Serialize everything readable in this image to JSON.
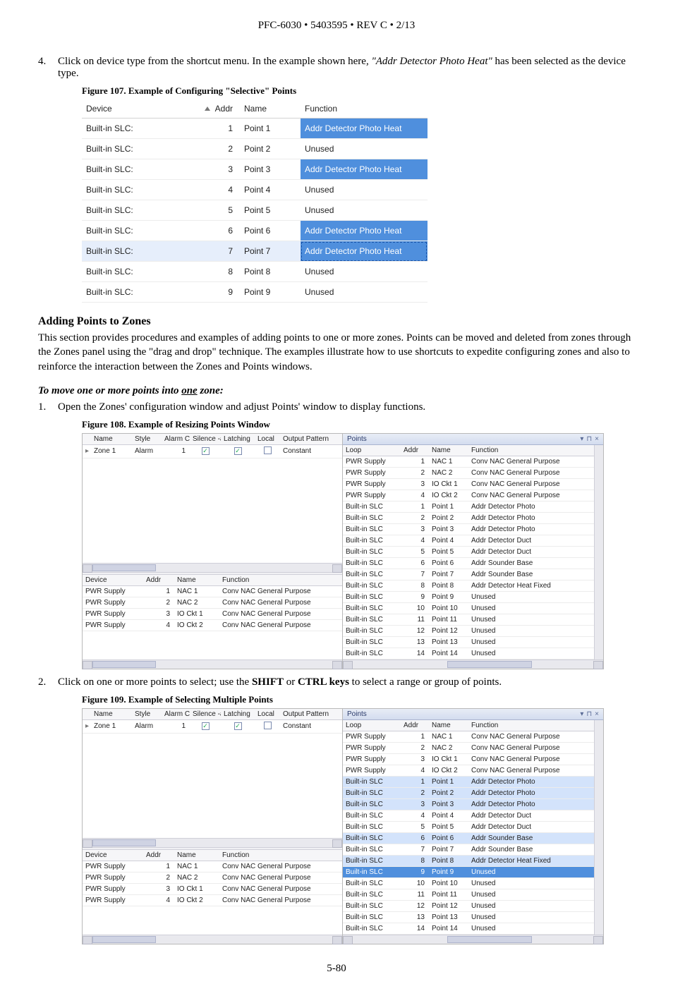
{
  "header": "PFC-6030 • 5403595 • REV C • 2/13",
  "page_number": "5-80",
  "step4": {
    "num": "4.",
    "text_a": "Click on device type from the shortcut menu. In the example shown here, ",
    "text_b": "\"Addr Detector Photo Heat\"",
    "text_c": " has been selected as the device type."
  },
  "fig107": {
    "caption": "Figure 107. Example of Configuring \"Selective\" Points",
    "columns": {
      "device": "Device",
      "addr": "Addr",
      "name": "Name",
      "function": "Function"
    },
    "rows": [
      {
        "device": "Built-in SLC:",
        "addr": "1",
        "name": "Point 1",
        "function": "Addr Detector Photo Heat",
        "sel": true
      },
      {
        "device": "Built-in SLC:",
        "addr": "2",
        "name": "Point 2",
        "function": "Unused",
        "sel": false
      },
      {
        "device": "Built-in SLC:",
        "addr": "3",
        "name": "Point 3",
        "function": "Addr Detector Photo Heat",
        "sel": true
      },
      {
        "device": "Built-in SLC:",
        "addr": "4",
        "name": "Point 4",
        "function": "Unused",
        "sel": false
      },
      {
        "device": "Built-in SLC:",
        "addr": "5",
        "name": "Point 5",
        "function": "Unused",
        "sel": false
      },
      {
        "device": "Built-in SLC:",
        "addr": "6",
        "name": "Point 6",
        "function": "Addr Detector Photo Heat",
        "sel": true
      },
      {
        "device": "Built-in SLC:",
        "addr": "7",
        "name": "Point 7",
        "function": "Addr Detector Photo Heat",
        "sel": true,
        "rowsel": true
      },
      {
        "device": "Built-in SLC:",
        "addr": "8",
        "name": "Point 8",
        "function": "Unused",
        "sel": false
      },
      {
        "device": "Built-in SLC:",
        "addr": "9",
        "name": "Point 9",
        "function": "Unused",
        "sel": false
      }
    ]
  },
  "section_adding": {
    "title": "Adding Points to Zones",
    "para": "This section provides procedures and examples of adding points to one or more zones. Points can be moved and deleted from zones through the Zones panel using the \"drag and drop\" technique. The examples illustrate how to use shortcuts to expedite configuring zones and also to reinforce the interaction between the Zones and Points windows."
  },
  "sub_move": {
    "title_a": "To move one or more points into ",
    "title_u": "one",
    "title_b": " zone:"
  },
  "step1": {
    "num": "1.",
    "text": "Open the Zones' configuration window and adjust Points' window to display functions."
  },
  "fig108_caption": "Figure 108. Example of Resizing Points Window",
  "step2": {
    "num": "2.",
    "text_a": "Click on one or more points to select; use the ",
    "text_b": "SHIFT",
    "text_c": " or ",
    "text_d": "CTRL keys",
    "text_e": " to select a range or group of points."
  },
  "fig109_caption": "Figure 109. Example of Selecting Multiple Points",
  "zones_panel": {
    "cols": [
      "Name",
      "Style",
      "Alarm Count",
      "Silence -able",
      "Latching",
      "Local",
      "Output Pattern"
    ],
    "row": {
      "name": "Zone 1",
      "style": "Alarm",
      "alarm": "1",
      "silence": true,
      "latch": true,
      "local": false,
      "pattern": "Constant"
    }
  },
  "lower_left": {
    "cols": [
      "Device",
      "Addr",
      "Name",
      "Function"
    ],
    "rows": [
      {
        "d": "PWR Supply",
        "a": "1",
        "n": "NAC 1",
        "f": "Conv NAC General Purpose"
      },
      {
        "d": "PWR Supply",
        "a": "2",
        "n": "NAC 2",
        "f": "Conv NAC General Purpose"
      },
      {
        "d": "PWR Supply",
        "a": "3",
        "n": "IO Ckt 1",
        "f": "Conv NAC General Purpose"
      },
      {
        "d": "PWR Supply",
        "a": "4",
        "n": "IO Ckt 2",
        "f": "Conv NAC General Purpose"
      }
    ]
  },
  "points_panel": {
    "title": "Points",
    "cols": [
      "Loop",
      "Addr",
      "Name",
      "Function"
    ],
    "rows": [
      {
        "l": "PWR Supply",
        "a": "1",
        "n": "NAC 1",
        "f": "Conv NAC General Purpose"
      },
      {
        "l": "PWR Supply",
        "a": "2",
        "n": "NAC 2",
        "f": "Conv NAC General Purpose"
      },
      {
        "l": "PWR Supply",
        "a": "3",
        "n": "IO Ckt 1",
        "f": "Conv NAC General Purpose"
      },
      {
        "l": "PWR Supply",
        "a": "4",
        "n": "IO Ckt 2",
        "f": "Conv NAC General Purpose"
      },
      {
        "l": "Built-in SLC",
        "a": "1",
        "n": "Point 1",
        "f": "Addr Detector Photo"
      },
      {
        "l": "Built-in SLC",
        "a": "2",
        "n": "Point 2",
        "f": "Addr Detector Photo"
      },
      {
        "l": "Built-in SLC",
        "a": "3",
        "n": "Point 3",
        "f": "Addr Detector Photo"
      },
      {
        "l": "Built-in SLC",
        "a": "4",
        "n": "Point 4",
        "f": "Addr Detector Duct"
      },
      {
        "l": "Built-in SLC",
        "a": "5",
        "n": "Point 5",
        "f": "Addr Detector Duct"
      },
      {
        "l": "Built-in SLC",
        "a": "6",
        "n": "Point 6",
        "f": "Addr Sounder Base"
      },
      {
        "l": "Built-in SLC",
        "a": "7",
        "n": "Point 7",
        "f": "Addr Sounder Base"
      },
      {
        "l": "Built-in SLC",
        "a": "8",
        "n": "Point 8",
        "f": "Addr Detector Heat Fixed"
      },
      {
        "l": "Built-in SLC",
        "a": "9",
        "n": "Point 9",
        "f": "Unused"
      },
      {
        "l": "Built-in SLC",
        "a": "10",
        "n": "Point 10",
        "f": "Unused"
      },
      {
        "l": "Built-in SLC",
        "a": "11",
        "n": "Point 11",
        "f": "Unused"
      },
      {
        "l": "Built-in SLC",
        "a": "12",
        "n": "Point 12",
        "f": "Unused"
      },
      {
        "l": "Built-in SLC",
        "a": "13",
        "n": "Point 13",
        "f": "Unused"
      },
      {
        "l": "Built-in SLC",
        "a": "14",
        "n": "Point 14",
        "f": "Unused"
      }
    ],
    "sel108": [],
    "sel109_light": [
      4,
      5,
      6,
      9,
      11
    ],
    "sel109_strong": [
      12
    ]
  }
}
